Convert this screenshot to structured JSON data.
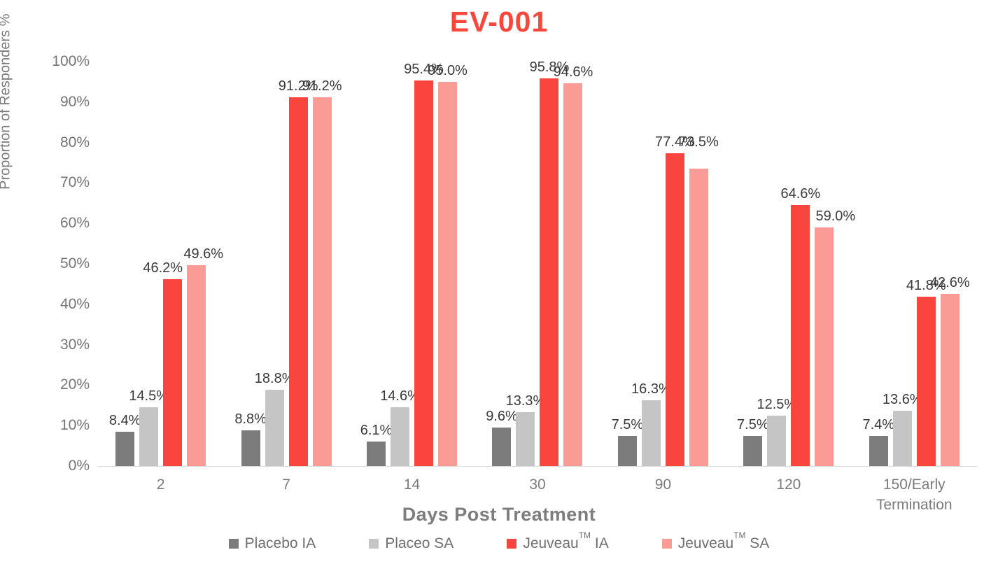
{
  "title": "EV-001",
  "title_color": "#F9473E",
  "axes": {
    "y_title": "Proportion of Responders %",
    "x_title": "Days Post Treatment",
    "y_tick_labels": [
      "0%",
      "10%",
      "20%",
      "30%",
      "40%",
      "50%",
      "60%",
      "70%",
      "80%",
      "90%",
      "100%"
    ]
  },
  "legend": {
    "position": "bottom",
    "items": [
      {
        "text": "Placebo IA",
        "sup": "",
        "rest": "",
        "color": "#7C7C7C"
      },
      {
        "text": "Placeo SA",
        "sup": "",
        "rest": "",
        "color": "#C5C5C5"
      },
      {
        "text": "Jeuveau",
        "sup": "TM",
        "rest": " IA",
        "color": "#FA453E"
      },
      {
        "text": "Jeuveau",
        "sup": "TM",
        "rest": " SA",
        "color": "#FB9B95"
      }
    ]
  },
  "chart_data": {
    "type": "bar",
    "title": "EV-001",
    "xlabel": "Days Post Treatment",
    "ylabel": "Proportion of Responders %",
    "categories": [
      "2",
      "7",
      "14",
      "30",
      "90",
      "120",
      "150/Early Termination"
    ],
    "series": [
      {
        "name": "Placebo IA",
        "color": "#7C7C7C",
        "values": [
          8.4,
          8.8,
          6.1,
          9.6,
          7.5,
          7.5,
          7.4
        ]
      },
      {
        "name": "Placeo SA",
        "color": "#C5C5C5",
        "values": [
          14.5,
          18.8,
          14.6,
          13.3,
          16.3,
          12.5,
          13.6
        ]
      },
      {
        "name": "Jeuveau™ IA",
        "color": "#FA453E",
        "values": [
          46.2,
          91.2,
          95.4,
          95.8,
          77.4,
          64.6,
          41.8
        ]
      },
      {
        "name": "Jeuveau™ SA",
        "color": "#FB9B95",
        "values": [
          49.6,
          91.2,
          95.0,
          94.6,
          73.5,
          59.0,
          42.6
        ]
      }
    ],
    "ylim": [
      0,
      100
    ],
    "y_tick_step": 10,
    "grid": false,
    "data_labels": true,
    "label_format": "0.0%",
    "legend_position": "bottom",
    "label_offsets": {
      "2-0": [
        -14,
        0
      ],
      "3-0": [
        10,
        0
      ],
      "3-4": [
        0,
        -22
      ],
      "3-5": [
        16,
        0
      ]
    }
  }
}
